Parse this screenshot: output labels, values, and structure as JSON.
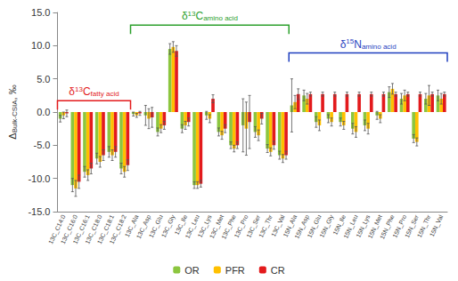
{
  "chart_data": {
    "type": "bar",
    "y_label": "ΔBulk-CSIA, ‰",
    "categories": [
      "13C_C14:0",
      "13C_C16:0",
      "13C_C16:1",
      "13C_C18:0",
      "13C_C18:1",
      "13C_C18:2",
      "13C_Ala",
      "13C_Asp",
      "13C_Glu",
      "13C_Gly",
      "13C_Ile",
      "13C_Leu",
      "13C_Lys",
      "13C_Met",
      "13C_Phe",
      "13C_Pro",
      "13C_Ser",
      "13C_Thr",
      "13C_Val",
      "15N_Ala",
      "15N_Asp",
      "15N_Glu",
      "15N_Gly",
      "15N_Ile",
      "15N_Leu",
      "15N_Lys",
      "15N_Met",
      "15N_Phe",
      "15N_Pro",
      "15N_Ser",
      "15N_Thr",
      "15N_Val"
    ],
    "series": [
      {
        "name": "OR",
        "color": "#8cc63f",
        "values": [
          -1.0,
          -11.0,
          -9.0,
          -7.0,
          -6.0,
          -8.5,
          -0.3,
          -0.5,
          -3.0,
          9.5,
          -2.5,
          -11.0,
          -0.5,
          -3.0,
          -5.0,
          -2.0,
          -3.0,
          -5.5,
          -6.5,
          1.0,
          2.5,
          -1.5,
          -1.0,
          -1.5,
          -2.5,
          -2.0,
          -0.5,
          3.0,
          2.0,
          -4.0,
          2.0,
          2.5
        ],
        "errors": [
          0.5,
          1.0,
          0.8,
          0.8,
          0.8,
          0.8,
          0.3,
          1.5,
          0.6,
          0.8,
          0.6,
          0.5,
          0.6,
          0.6,
          0.5,
          4.0,
          0.8,
          0.6,
          0.6,
          4.0,
          0.8,
          0.8,
          0.6,
          0.6,
          0.8,
          0.8,
          0.6,
          0.8,
          0.8,
          0.6,
          0.8,
          0.8
        ]
      },
      {
        "name": "PFR",
        "color": "#ffc000",
        "values": [
          -0.5,
          -11.5,
          -9.5,
          -7.5,
          -6.5,
          -9.0,
          -0.5,
          -1.0,
          -2.5,
          9.8,
          -2.0,
          -11.0,
          -1.0,
          -3.5,
          -5.5,
          -2.5,
          -3.5,
          -6.0,
          -7.0,
          1.5,
          2.0,
          -2.0,
          -1.5,
          -2.0,
          -3.0,
          -2.5,
          -1.0,
          3.5,
          2.5,
          -4.5,
          2.5,
          2.0
        ],
        "errors": [
          0.5,
          1.2,
          0.8,
          0.8,
          0.8,
          0.8,
          0.3,
          1.5,
          0.6,
          0.8,
          0.6,
          0.5,
          0.6,
          0.6,
          0.5,
          4.0,
          0.8,
          0.6,
          0.6,
          1.0,
          0.8,
          0.8,
          0.6,
          0.6,
          0.8,
          0.8,
          0.6,
          0.8,
          0.8,
          0.6,
          1.5,
          0.8
        ]
      },
      {
        "name": "CR",
        "color": "#e31a1c",
        "values": [
          -0.2,
          -10.5,
          -8.5,
          -6.5,
          -6.0,
          -8.0,
          -0.2,
          -0.8,
          -2.0,
          9.2,
          -1.5,
          -10.8,
          2.0,
          -2.5,
          -5.0,
          -1.5,
          -1.0,
          -5.0,
          -6.5,
          2.7,
          2.7,
          2.7,
          2.7,
          2.7,
          2.7,
          2.7,
          2.7,
          2.7,
          2.7,
          2.7,
          2.7,
          2.7
        ],
        "errors": [
          0.5,
          1.0,
          0.8,
          0.8,
          0.8,
          0.8,
          0.3,
          1.5,
          0.6,
          0.8,
          0.6,
          0.5,
          0.6,
          0.6,
          0.5,
          4.0,
          0.8,
          0.6,
          0.6,
          0.8,
          0.3,
          0.3,
          0.3,
          0.3,
          0.3,
          0.3,
          0.3,
          0.3,
          0.3,
          0.3,
          0.3,
          0.3
        ]
      }
    ],
    "ylim": [
      -15,
      15
    ],
    "yticks": [
      {
        "value": -15,
        "label": "-15.0"
      },
      {
        "value": -10,
        "label": "-10.0"
      },
      {
        "value": -5,
        "label": "-5.0"
      },
      {
        "value": 0,
        "label": "0.0"
      },
      {
        "value": 5,
        "label": "5.0"
      },
      {
        "value": 10,
        "label": "10.0"
      },
      {
        "value": 15,
        "label": "15.0"
      }
    ],
    "grid": false,
    "legend": "bottom",
    "annotations": [
      {
        "text": "δ13Cfatty acid",
        "color": "#e31a1c",
        "from": "13C_C14:0",
        "to": "13C_C18:2",
        "y": 1.7
      },
      {
        "text": "δ13Camino acid",
        "color": "#2ca02c",
        "from": "13C_Ala",
        "to": "13C_Val",
        "y": 13.1
      },
      {
        "text": "δ15Namino acid",
        "color": "#1f3fbf",
        "from": "15N_Ala",
        "to": "15N_Val",
        "y": 8.9
      }
    ]
  }
}
